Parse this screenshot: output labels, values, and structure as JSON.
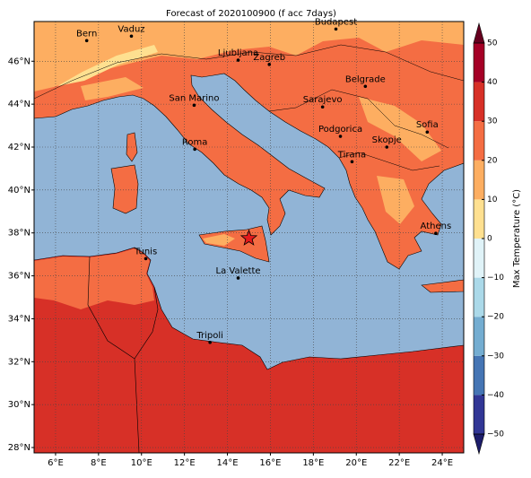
{
  "title": "Forecast of 2020100900 (f acc 7days)",
  "map": {
    "lon_range": [
      5,
      25
    ],
    "lat_range": [
      27.75,
      47.85
    ],
    "xticks": [
      {
        "value": 6,
        "label": "6°E"
      },
      {
        "value": 8,
        "label": "8°E"
      },
      {
        "value": 10,
        "label": "10°E"
      },
      {
        "value": 12,
        "label": "12°E"
      },
      {
        "value": 14,
        "label": "14°E"
      },
      {
        "value": 16,
        "label": "16°E"
      },
      {
        "value": 18,
        "label": "18°E"
      },
      {
        "value": 20,
        "label": "20°E"
      },
      {
        "value": 22,
        "label": "22°E"
      },
      {
        "value": 24,
        "label": "24°E"
      }
    ],
    "yticks": [
      {
        "value": 28,
        "label": "28°N"
      },
      {
        "value": 30,
        "label": "30°N"
      },
      {
        "value": 32,
        "label": "32°N"
      },
      {
        "value": 34,
        "label": "34°N"
      },
      {
        "value": 36,
        "label": "36°N"
      },
      {
        "value": 38,
        "label": "38°N"
      },
      {
        "value": 40,
        "label": "40°N"
      },
      {
        "value": 42,
        "label": "42°N"
      },
      {
        "value": 44,
        "label": "44°N"
      },
      {
        "value": 46,
        "label": "46°N"
      }
    ],
    "grid": true,
    "cities": [
      {
        "name": "Bern",
        "lon": 7.45,
        "lat": 46.96
      },
      {
        "name": "Vaduz",
        "lon": 9.53,
        "lat": 47.17
      },
      {
        "name": "Budapest",
        "lon": 19.05,
        "lat": 47.5
      },
      {
        "name": "Ljubljana",
        "lon": 14.5,
        "lat": 46.05
      },
      {
        "name": "Zagreb",
        "lon": 15.95,
        "lat": 45.85
      },
      {
        "name": "Belgrade",
        "lon": 20.42,
        "lat": 44.83
      },
      {
        "name": "San Marino",
        "lon": 12.45,
        "lat": 43.95
      },
      {
        "name": "Sarajevo",
        "lon": 18.43,
        "lat": 43.87
      },
      {
        "name": "Sofia",
        "lon": 23.3,
        "lat": 42.7
      },
      {
        "name": "Podgorica",
        "lon": 19.26,
        "lat": 42.5
      },
      {
        "name": "Skopje",
        "lon": 21.42,
        "lat": 42.0
      },
      {
        "name": "Roma",
        "lon": 12.48,
        "lat": 41.9
      },
      {
        "name": "Tirana",
        "lon": 19.8,
        "lat": 41.32
      },
      {
        "name": "Athens",
        "lon": 23.7,
        "lat": 37.98
      },
      {
        "name": "Tunis",
        "lon": 10.2,
        "lat": 36.8
      },
      {
        "name": "La Valette",
        "lon": 14.5,
        "lat": 35.9
      },
      {
        "name": "Tripoli",
        "lon": 13.19,
        "lat": 32.9
      }
    ],
    "marker": {
      "lon": 15.0,
      "lat": 37.75,
      "color": "#e41a1c"
    }
  },
  "colorbar": {
    "label": "Max Temperature (°C)",
    "range": [
      -50,
      50
    ],
    "ticks": [
      {
        "value": -50,
        "label": "−50"
      },
      {
        "value": -40,
        "label": "−40"
      },
      {
        "value": -30,
        "label": "−30"
      },
      {
        "value": -20,
        "label": "−20"
      },
      {
        "value": -10,
        "label": "−10"
      },
      0,
      10,
      20,
      30,
      40,
      50
    ],
    "colors": [
      "#313695",
      "#4575b4",
      "#74add1",
      "#abd9e9",
      "#e0f3f8",
      "#fee090",
      "#fdae61",
      "#f46d43",
      "#d73027",
      "#a50026"
    ],
    "under_color": "#1d1d6b",
    "over_color": "#67001f"
  }
}
